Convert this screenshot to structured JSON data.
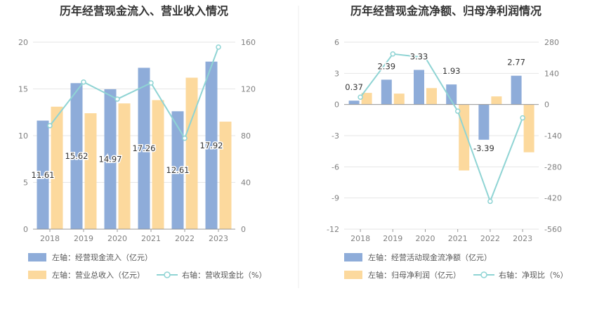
{
  "chart_data": [
    {
      "type": "bar",
      "title": "历年经营现金流入、营业收入情况",
      "categories": [
        "2018",
        "2019",
        "2020",
        "2021",
        "2022",
        "2023"
      ],
      "left_axis": {
        "ylim": [
          0,
          20
        ],
        "ticks": [
          "0",
          "5",
          "10",
          "15",
          "20"
        ]
      },
      "right_axis": {
        "ylim": [
          0,
          160
        ],
        "ticks": [
          "0",
          "40",
          "80",
          "120",
          "160"
        ]
      },
      "series": [
        {
          "name": "左轴：经营现金流入（亿元）",
          "kind": "bar",
          "axis": "left",
          "color": "#8eacd9",
          "values": [
            11.61,
            15.62,
            14.97,
            17.26,
            12.61,
            17.92
          ],
          "labels": [
            "11.61",
            "15.62",
            "14.97",
            "17.26",
            "12.61",
            "17.92"
          ]
        },
        {
          "name": "左轴：营业总收入（亿元）",
          "kind": "bar",
          "axis": "left",
          "color": "#fcd99d",
          "values": [
            13.1,
            12.4,
            13.45,
            13.8,
            16.2,
            11.5
          ]
        },
        {
          "name": "右轴：营收现金比（%）",
          "kind": "line",
          "axis": "right",
          "color": "#8fd4d4",
          "values": [
            88.6,
            125.9,
            111.3,
            125.1,
            77.8,
            155.8
          ]
        }
      ]
    },
    {
      "type": "bar",
      "title": "历年经营现金流净额、归母净利润情况",
      "categories": [
        "2018",
        "2019",
        "2020",
        "2021",
        "2022",
        "2023"
      ],
      "left_axis": {
        "ylim": [
          -12,
          6
        ],
        "ticks": [
          "-12",
          "-9",
          "-6",
          "-3",
          "0",
          "3",
          "6"
        ]
      },
      "right_axis": {
        "ylim": [
          -560,
          280
        ],
        "ticks": [
          "-560",
          "-420",
          "-280",
          "-140",
          "0",
          "140",
          "280"
        ]
      },
      "series": [
        {
          "name": "左轴：经营活动现金流净额（亿元）",
          "kind": "bar",
          "axis": "left",
          "color": "#8eacd9",
          "values": [
            0.37,
            2.39,
            3.33,
            1.93,
            -3.39,
            2.77
          ],
          "labels": [
            "0.37",
            "2.39",
            "3.33",
            "1.93",
            "-3.39",
            "2.77"
          ]
        },
        {
          "name": "左轴：归母净利润（亿元）",
          "kind": "bar",
          "axis": "left",
          "color": "#fcd99d",
          "values": [
            1.12,
            1.05,
            1.58,
            -6.35,
            0.78,
            -4.6
          ]
        },
        {
          "name": "右轴：净现比（%）",
          "kind": "line",
          "axis": "right",
          "color": "#8fd4d4",
          "values": [
            33,
            227,
            211,
            -30,
            -435,
            -60
          ]
        }
      ]
    }
  ]
}
